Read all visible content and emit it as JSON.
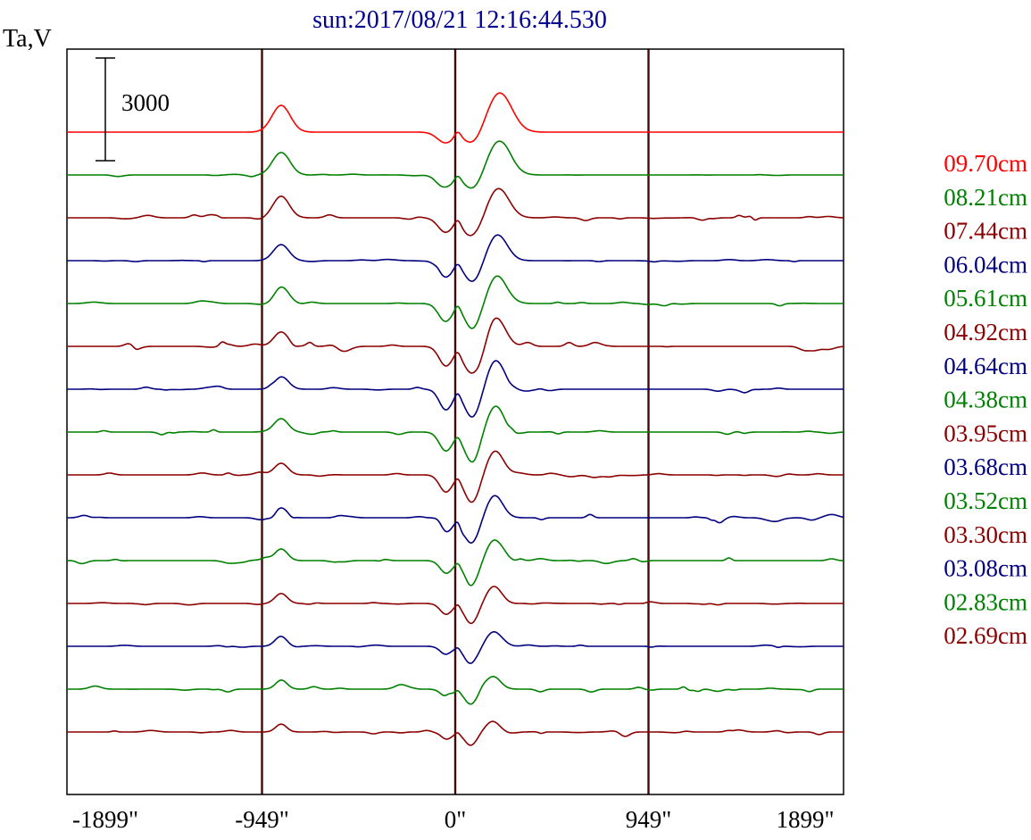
{
  "page": {
    "background": "#ffffff"
  },
  "chart_data": {
    "type": "line",
    "title": "sun:2017/08/21 12:16:44.530",
    "title_color": "#000090",
    "ylabel": "Ta,V",
    "scale_bar_label": "3000",
    "scale_bar_value": 3000,
    "x_unit": "arcsec",
    "xlim": [
      -1907,
      1907
    ],
    "x_ticks": [
      {
        "value": -1899,
        "label": "-1899\""
      },
      {
        "value": -949,
        "label": "-949\""
      },
      {
        "value": 0,
        "label": "0\""
      },
      {
        "value": 949,
        "label": "949\""
      },
      {
        "value": 1899,
        "label": "1899\""
      }
    ],
    "grid_x": [
      -949,
      0,
      949
    ],
    "grid_color": "#400a0a",
    "axis_color": "#000000",
    "legend_position": "right-outside",
    "series": [
      {
        "label": "09.70cm",
        "color": "#ff0000",
        "noise": 0,
        "features": [
          [
            -855,
            780,
            45
          ],
          [
            -48,
            -310,
            40
          ],
          [
            12,
            180,
            16
          ],
          [
            88,
            -370,
            45
          ],
          [
            218,
            1150,
            60
          ]
        ]
      },
      {
        "label": "08.21cm",
        "color": "#008000",
        "noise": 30,
        "features": [
          [
            -855,
            680,
            42
          ],
          [
            -48,
            -370,
            38
          ],
          [
            12,
            160,
            16
          ],
          [
            88,
            -440,
            44
          ],
          [
            215,
            990,
            56
          ]
        ]
      },
      {
        "label": "07.44cm",
        "color": "#8b0000",
        "noise": 100,
        "features": [
          [
            -855,
            630,
            40
          ],
          [
            -48,
            -420,
            36
          ],
          [
            12,
            160,
            15
          ],
          [
            88,
            -520,
            43
          ],
          [
            212,
            860,
            52
          ]
        ]
      },
      {
        "label": "06.04cm",
        "color": "#000080",
        "noise": 50,
        "features": [
          [
            -855,
            470,
            38
          ],
          [
            -48,
            -470,
            35
          ],
          [
            12,
            130,
            15
          ],
          [
            86,
            -630,
            42
          ],
          [
            207,
            760,
            48
          ]
        ]
      },
      {
        "label": "05.61cm",
        "color": "#008000",
        "noise": 70,
        "features": [
          [
            -855,
            500,
            37
          ],
          [
            -48,
            -520,
            34
          ],
          [
            12,
            160,
            14
          ],
          [
            86,
            -700,
            41
          ],
          [
            205,
            810,
            46
          ]
        ]
      },
      {
        "label": "04.92cm",
        "color": "#8b0000",
        "noise": 120,
        "features": [
          [
            -855,
            420,
            36
          ],
          [
            -46,
            -570,
            33
          ],
          [
            12,
            130,
            14
          ],
          [
            84,
            -780,
            40
          ],
          [
            202,
            860,
            44
          ]
        ]
      },
      {
        "label": "04.64cm",
        "color": "#000080",
        "noise": 60,
        "features": [
          [
            -855,
            390,
            35
          ],
          [
            -46,
            -600,
            32
          ],
          [
            12,
            130,
            13
          ],
          [
            84,
            -830,
            39
          ],
          [
            200,
            810,
            43
          ]
        ]
      },
      {
        "label": "04.38cm",
        "color": "#008000",
        "noise": 70,
        "features": [
          [
            -855,
            390,
            34
          ],
          [
            -46,
            -550,
            32
          ],
          [
            12,
            100,
            13
          ],
          [
            82,
            -860,
            38
          ],
          [
            198,
            760,
            42
          ]
        ]
      },
      {
        "label": "03.95cm",
        "color": "#8b0000",
        "noise": 60,
        "features": [
          [
            -855,
            340,
            33
          ],
          [
            -46,
            -500,
            31
          ],
          [
            12,
            100,
            12
          ],
          [
            82,
            -810,
            37
          ],
          [
            196,
            700,
            41
          ]
        ]
      },
      {
        "label": "03.68cm",
        "color": "#000080",
        "noise": 100,
        "features": [
          [
            -855,
            310,
            32
          ],
          [
            -44,
            -420,
            30
          ],
          [
            12,
            80,
            12
          ],
          [
            80,
            -760,
            36
          ],
          [
            194,
            650,
            40
          ]
        ]
      },
      {
        "label": "03.52cm",
        "color": "#008000",
        "noise": 80,
        "features": [
          [
            -855,
            340,
            31
          ],
          [
            -44,
            -370,
            30
          ],
          [
            12,
            80,
            11
          ],
          [
            80,
            -700,
            35
          ],
          [
            192,
            600,
            39
          ]
        ]
      },
      {
        "label": "03.30cm",
        "color": "#8b0000",
        "noise": 50,
        "features": [
          [
            -855,
            290,
            30
          ],
          [
            -44,
            -310,
            29
          ],
          [
            12,
            80,
            11
          ],
          [
            78,
            -600,
            34
          ],
          [
            190,
            500,
            38
          ]
        ]
      },
      {
        "label": "03.08cm",
        "color": "#000080",
        "noise": 40,
        "features": [
          [
            -855,
            260,
            29
          ],
          [
            -44,
            -260,
            28
          ],
          [
            12,
            50,
            10
          ],
          [
            78,
            -500,
            33
          ],
          [
            188,
            420,
            37
          ]
        ]
      },
      {
        "label": "02.83cm",
        "color": "#008000",
        "noise": 90,
        "features": [
          [
            -855,
            290,
            28
          ],
          [
            -42,
            -230,
            28
          ],
          [
            12,
            50,
            10
          ],
          [
            76,
            -440,
            32
          ],
          [
            186,
            370,
            36
          ]
        ]
      },
      {
        "label": "02.69cm",
        "color": "#8b0000",
        "noise": 80,
        "features": [
          [
            -855,
            230,
            27
          ],
          [
            -42,
            -210,
            27
          ],
          [
            12,
            50,
            9
          ],
          [
            76,
            -390,
            31
          ],
          [
            184,
            310,
            35
          ]
        ]
      }
    ]
  }
}
